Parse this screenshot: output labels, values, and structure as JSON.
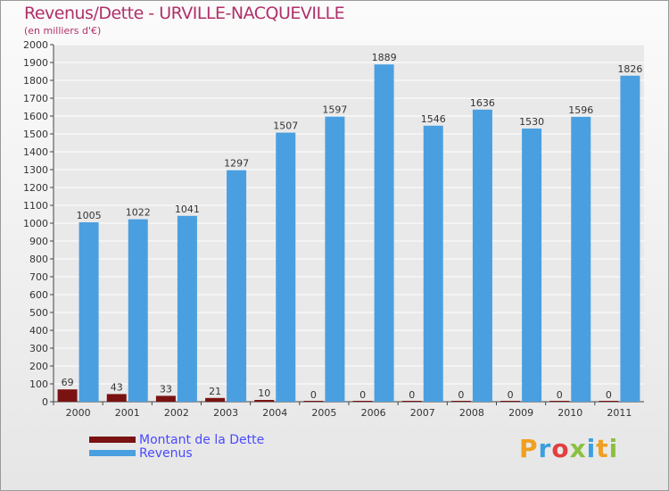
{
  "chart_data": {
    "type": "bar",
    "title": "Revenus/Dette - URVILLE-NACQUEVILLE",
    "subtitle": "(en milliers d'€)",
    "categories": [
      "2000",
      "2001",
      "2002",
      "2003",
      "2004",
      "2005",
      "2006",
      "2007",
      "2008",
      "2009",
      "2010",
      "2011"
    ],
    "series": [
      {
        "name": "Montant de la Dette",
        "color": "#7a1212",
        "values": [
          69,
          43,
          33,
          21,
          10,
          0,
          0,
          0,
          0,
          0,
          0,
          0
        ]
      },
      {
        "name": "Revenus",
        "color": "#4a9fe0",
        "values": [
          1005,
          1022,
          1041,
          1297,
          1507,
          1597,
          1889,
          1546,
          1636,
          1530,
          1596,
          1826
        ]
      }
    ],
    "ylim": [
      0,
      2000
    ],
    "yticks": [
      0,
      100,
      200,
      300,
      400,
      500,
      600,
      700,
      800,
      900,
      1000,
      1100,
      1200,
      1300,
      1400,
      1500,
      1600,
      1700,
      1800,
      1900,
      2000
    ],
    "grid": true,
    "legend_position": "bottom-left"
  },
  "logo": {
    "letters": [
      "P",
      "r",
      "o",
      "x",
      "i",
      "t",
      "i"
    ],
    "colors": [
      "#f0a020",
      "#3aa0e0",
      "#e04040",
      "#8cc040",
      "#3aa0e0",
      "#f0a020",
      "#8cc040"
    ]
  }
}
